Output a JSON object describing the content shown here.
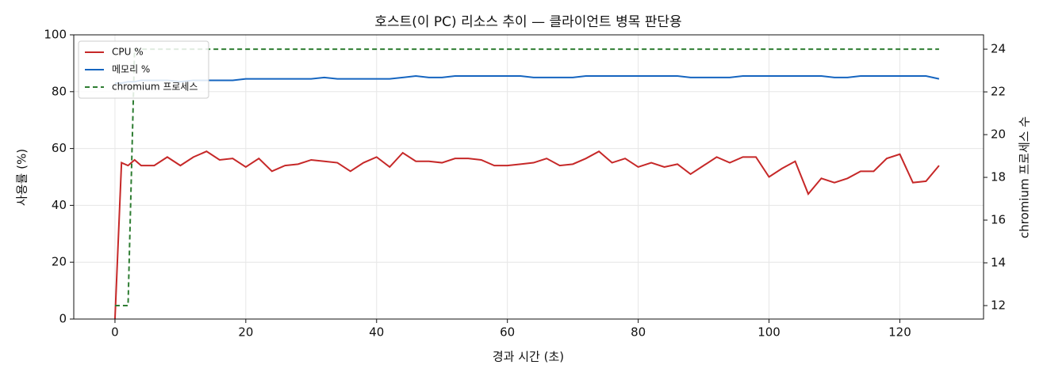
{
  "chart_data": {
    "type": "line",
    "title": "호스트(이 PC) 리소스 추이 — 클라이언트 병목 판단용",
    "xlabel": "경과 시간 (초)",
    "ylabel": "사용률 (%)",
    "y2label": "chromium 프로세스 수",
    "x": [
      0,
      1,
      2,
      3,
      4,
      6,
      8,
      10,
      12,
      14,
      16,
      18,
      20,
      22,
      24,
      26,
      28,
      30,
      32,
      34,
      36,
      38,
      40,
      42,
      44,
      46,
      48,
      50,
      52,
      54,
      56,
      58,
      60,
      62,
      64,
      66,
      68,
      70,
      72,
      74,
      76,
      78,
      80,
      82,
      84,
      86,
      88,
      90,
      92,
      94,
      96,
      98,
      100,
      102,
      104,
      106,
      108,
      110,
      112,
      114,
      116,
      118,
      120,
      122,
      124,
      126
    ],
    "series": [
      {
        "name": "CPU %",
        "color": "#c62828",
        "style": "solid",
        "values": [
          0,
          55,
          54,
          56,
          54,
          54,
          57,
          54,
          57,
          59,
          56,
          56.5,
          53.5,
          56.5,
          52,
          54,
          54.5,
          56,
          55.5,
          55,
          52,
          55,
          57,
          53.5,
          58.5,
          55.5,
          55.5,
          55,
          56.5,
          56.5,
          56,
          54,
          54,
          54.5,
          55,
          56.5,
          54,
          54.5,
          56.5,
          59,
          55,
          56.5,
          53.5,
          55,
          53.5,
          54.5,
          51,
          54,
          57,
          55,
          57,
          57,
          50,
          53,
          55.5,
          44,
          49.5,
          48,
          49.5,
          52,
          52,
          56.5,
          58,
          48,
          48.5,
          54
        ]
      },
      {
        "name": "메모리 %",
        "color": "#1565c0",
        "style": "solid",
        "values": [
          83,
          83,
          83.5,
          83.5,
          84,
          84,
          84,
          83.5,
          84,
          84,
          84,
          84,
          84.5,
          84.5,
          84.5,
          84.5,
          84.5,
          84.5,
          85,
          84.5,
          84.5,
          84.5,
          84.5,
          84.5,
          85,
          85.5,
          85,
          85,
          85.5,
          85.5,
          85.5,
          85.5,
          85.5,
          85.5,
          85,
          85,
          85,
          85,
          85.5,
          85.5,
          85.5,
          85.5,
          85.5,
          85.5,
          85.5,
          85.5,
          85,
          85,
          85,
          85,
          85.5,
          85.5,
          85.5,
          85.5,
          85.5,
          85.5,
          85.5,
          85,
          85,
          85.5,
          85.5,
          85.5,
          85.5,
          85.5,
          85.5,
          84.5
        ]
      },
      {
        "name": "chromium 프로세스",
        "color": "#2e7d32",
        "style": "dashed",
        "axis": "y2",
        "values": [
          12,
          12,
          12,
          24,
          24,
          24,
          24,
          24,
          24,
          24,
          24,
          24,
          24,
          24,
          24,
          24,
          24,
          24,
          24,
          24,
          24,
          24,
          24,
          24,
          24,
          24,
          24,
          24,
          24,
          24,
          24,
          24,
          24,
          24,
          24,
          24,
          24,
          24,
          24,
          24,
          24,
          24,
          24,
          24,
          24,
          24,
          24,
          24,
          24,
          24,
          24,
          24,
          24,
          24,
          24,
          24,
          24,
          24,
          24,
          24,
          24,
          24,
          24,
          24,
          24,
          24
        ]
      }
    ],
    "xlim": [
      -6.3,
      132.8
    ],
    "xticks": [
      0,
      20,
      40,
      60,
      80,
      100,
      120
    ],
    "ylim": [
      0,
      100
    ],
    "yticks": [
      0,
      20,
      40,
      60,
      80,
      100
    ],
    "y2lim": [
      11.37,
      24.67
    ],
    "y2ticks": [
      12,
      14,
      16,
      18,
      20,
      22,
      24
    ],
    "grid": true,
    "legend": "upper-left"
  }
}
